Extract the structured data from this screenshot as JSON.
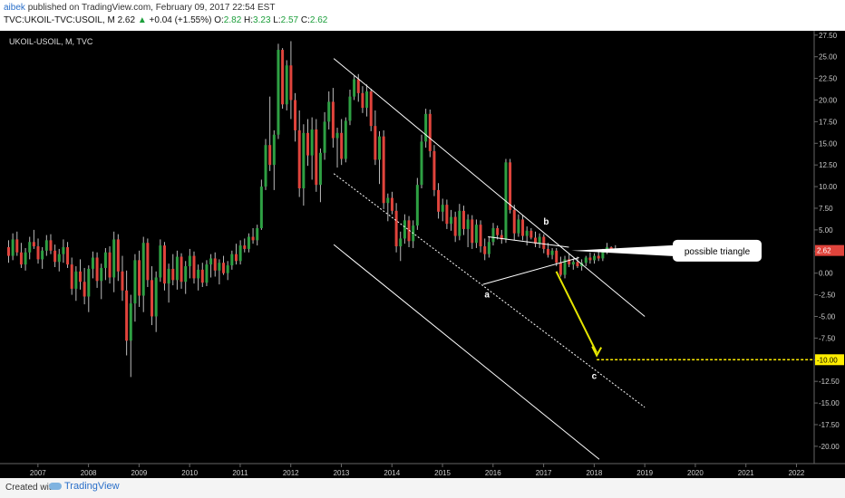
{
  "header": {
    "author": "aibek",
    "published": "published on TradingView.com, February 09, 2017 22:54 EST",
    "symbol": "TVC:UKOIL-TVC:USOIL, M",
    "last": "2.62",
    "change": "+0.04 (+1.55%)",
    "o_label": "O:",
    "o": "2.82",
    "h_label": "H:",
    "h": "3.23",
    "l_label": "L:",
    "l": "2.57",
    "c_label": "C:",
    "c": "2.62"
  },
  "footer": {
    "created_with": "Created with",
    "brand": "TradingView"
  },
  "chart_data": {
    "type": "candlestick",
    "title": "UKOIL-USOIL, M, TVC",
    "ylim": [
      -22,
      28
    ],
    "y_ticks": [
      27.5,
      25.0,
      22.5,
      20.0,
      17.5,
      15.0,
      12.5,
      10.0,
      7.5,
      5.0,
      2.5,
      0.0,
      -2.5,
      -5.0,
      -7.5,
      -10.0,
      -12.5,
      -15.0,
      -17.5,
      -20.0
    ],
    "y_tick_labels": [
      "27.50",
      "25.00",
      "22.50",
      "20.00",
      "17.50",
      "15.00",
      "12.50",
      "10.00",
      "7.50",
      "5.00",
      "2.50",
      "0.00",
      "-2.50",
      "-5.00",
      "-7.50",
      "-10.00",
      "-12.50",
      "-15.00",
      "-17.50",
      "-20.00"
    ],
    "x_ticks": [
      "2007",
      "2008",
      "2009",
      "2010",
      "2011",
      "2012",
      "2013",
      "2014",
      "2015",
      "2016",
      "2017",
      "2018",
      "2019",
      "2020",
      "2021",
      "2022"
    ],
    "x_start_year": 2006.25,
    "x_end_year": 2022.35,
    "last_price": 2.62,
    "last_price_label": "2.62",
    "target_price": -10.0,
    "target_label": "-10.00",
    "colors": {
      "up": "#2ea043",
      "down": "#e0443c",
      "wick": "#bbbbbb",
      "target": "#ffee00",
      "label_red": "#e0443c"
    },
    "candles_ohlc": [
      [
        3.0,
        3.8,
        1.2,
        2.0
      ],
      [
        2.0,
        4.6,
        1.5,
        3.9
      ],
      [
        3.9,
        4.8,
        2.0,
        2.4
      ],
      [
        2.4,
        3.5,
        0.6,
        1.0
      ],
      [
        1.0,
        2.9,
        0.3,
        2.4
      ],
      [
        2.4,
        4.2,
        1.6,
        3.6
      ],
      [
        3.6,
        5.0,
        2.8,
        3.1
      ],
      [
        3.1,
        4.0,
        1.1,
        1.6
      ],
      [
        1.6,
        3.0,
        0.5,
        2.6
      ],
      [
        2.6,
        4.4,
        2.0,
        3.8
      ],
      [
        3.8,
        4.5,
        2.2,
        2.6
      ],
      [
        2.6,
        3.3,
        0.7,
        1.3
      ],
      [
        1.3,
        2.8,
        0.2,
        2.2
      ],
      [
        2.2,
        3.9,
        1.2,
        3.0
      ],
      [
        3.0,
        3.6,
        0.6,
        1.0
      ],
      [
        1.0,
        1.8,
        -2.5,
        -1.8
      ],
      [
        -1.8,
        0.8,
        -3.2,
        0.2
      ],
      [
        0.2,
        1.6,
        -1.9,
        -1.0
      ],
      [
        -1.0,
        0.6,
        -3.6,
        -2.7
      ],
      [
        -2.7,
        0.9,
        -4.5,
        0.5
      ],
      [
        0.5,
        2.5,
        -0.6,
        1.8
      ],
      [
        1.8,
        2.4,
        -1.7,
        -0.9
      ],
      [
        -0.9,
        1.1,
        -3.0,
        0.6
      ],
      [
        0.6,
        2.9,
        -0.8,
        2.4
      ],
      [
        2.4,
        3.1,
        -1.2,
        -0.5
      ],
      [
        -0.5,
        4.8,
        -2.2,
        3.9
      ],
      [
        3.9,
        4.5,
        -0.9,
        0.2
      ],
      [
        0.2,
        2.0,
        -3.2,
        -2.0
      ],
      [
        -2.0,
        0.3,
        -9.5,
        -7.8
      ],
      [
        -7.8,
        -2.5,
        -12.0,
        -3.5
      ],
      [
        -3.5,
        2.2,
        -5.6,
        1.5
      ],
      [
        1.5,
        2.6,
        -3.9,
        -2.6
      ],
      [
        -2.6,
        4.2,
        -4.5,
        3.5
      ],
      [
        3.5,
        4.0,
        -1.6,
        -0.8
      ],
      [
        -0.8,
        0.8,
        -6.0,
        -5.0
      ],
      [
        -5.0,
        0.2,
        -6.8,
        -0.5
      ],
      [
        -0.5,
        3.9,
        -1.0,
        3.2
      ],
      [
        3.2,
        3.6,
        -2.0,
        -1.2
      ],
      [
        -1.2,
        1.1,
        -3.4,
        0.5
      ],
      [
        0.5,
        2.2,
        -1.4,
        -0.8
      ],
      [
        -0.8,
        2.6,
        -1.9,
        1.9
      ],
      [
        1.9,
        2.3,
        -1.8,
        -1.0
      ],
      [
        -1.0,
        1.4,
        -2.4,
        0.8
      ],
      [
        0.8,
        2.8,
        -0.6,
        2.0
      ],
      [
        2.0,
        2.5,
        -1.2,
        -0.6
      ],
      [
        -0.6,
        1.0,
        -2.0,
        0.4
      ],
      [
        0.4,
        1.2,
        -1.6,
        -1.1
      ],
      [
        -1.1,
        1.5,
        -1.5,
        1.0
      ],
      [
        1.0,
        2.2,
        -0.5,
        1.7
      ],
      [
        1.7,
        2.4,
        -0.4,
        0.3
      ],
      [
        0.3,
        1.6,
        -1.3,
        1.2
      ],
      [
        1.2,
        2.0,
        -0.2,
        0.0
      ],
      [
        0.0,
        1.4,
        -0.8,
        0.9
      ],
      [
        0.9,
        2.6,
        0.4,
        2.2
      ],
      [
        2.2,
        3.4,
        1.0,
        1.4
      ],
      [
        1.4,
        3.8,
        1.0,
        3.2
      ],
      [
        3.2,
        4.0,
        2.4,
        2.8
      ],
      [
        2.8,
        4.6,
        2.4,
        4.2
      ],
      [
        4.2,
        5.2,
        3.4,
        3.8
      ],
      [
        3.8,
        5.6,
        3.2,
        5.2
      ],
      [
        5.2,
        10.8,
        5.0,
        10.0
      ],
      [
        10.0,
        15.5,
        9.6,
        14.8
      ],
      [
        14.8,
        20.4,
        11.8,
        12.5
      ],
      [
        12.5,
        16.5,
        9.6,
        16.0
      ],
      [
        16.0,
        26.5,
        15.5,
        25.8
      ],
      [
        25.8,
        26.0,
        19.0,
        19.5
      ],
      [
        19.5,
        24.6,
        18.8,
        24.0
      ],
      [
        24.0,
        26.8,
        17.8,
        20.0
      ],
      [
        20.0,
        20.8,
        15.2,
        16.5
      ],
      [
        16.5,
        18.8,
        8.8,
        9.8
      ],
      [
        9.8,
        17.2,
        7.8,
        16.2
      ],
      [
        16.2,
        17.8,
        12.4,
        13.6
      ],
      [
        13.6,
        18.0,
        10.8,
        16.6
      ],
      [
        16.6,
        17.8,
        9.4,
        10.2
      ],
      [
        10.2,
        14.4,
        8.2,
        13.9
      ],
      [
        13.9,
        18.6,
        13.1,
        17.5
      ],
      [
        17.5,
        21.0,
        16.6,
        19.8
      ],
      [
        19.8,
        21.4,
        14.5,
        15.6
      ],
      [
        15.6,
        16.8,
        12.2,
        16.2
      ],
      [
        16.2,
        17.8,
        12.5,
        13.2
      ],
      [
        13.2,
        18.0,
        12.8,
        17.6
      ],
      [
        17.6,
        21.2,
        17.1,
        20.4
      ],
      [
        20.4,
        22.8,
        20.0,
        22.4
      ],
      [
        22.4,
        23.0,
        19.8,
        20.8
      ],
      [
        20.8,
        21.6,
        18.5,
        19.1
      ],
      [
        19.1,
        21.8,
        18.1,
        21.0
      ],
      [
        21.0,
        21.3,
        16.4,
        17.0
      ],
      [
        17.0,
        18.8,
        12.5,
        13.1
      ],
      [
        13.1,
        16.4,
        10.3,
        15.8
      ],
      [
        15.8,
        16.5,
        7.4,
        8.1
      ],
      [
        8.1,
        9.2,
        6.0,
        8.7
      ],
      [
        8.7,
        9.4,
        6.8,
        7.2
      ],
      [
        7.2,
        8.1,
        2.4,
        3.1
      ],
      [
        3.1,
        4.8,
        1.4,
        4.0
      ],
      [
        4.0,
        6.8,
        3.4,
        6.1
      ],
      [
        6.1,
        6.6,
        3.0,
        3.7
      ],
      [
        3.7,
        6.1,
        2.9,
        5.5
      ],
      [
        5.5,
        11.0,
        5.0,
        10.2
      ],
      [
        10.2,
        16.0,
        9.8,
        15.2
      ],
      [
        15.2,
        19.0,
        14.5,
        18.4
      ],
      [
        18.4,
        18.9,
        13.4,
        14.1
      ],
      [
        14.1,
        14.8,
        8.9,
        9.6
      ],
      [
        9.6,
        10.4,
        6.3,
        7.1
      ],
      [
        7.1,
        8.6,
        6.0,
        7.9
      ],
      [
        7.9,
        8.5,
        5.1,
        5.7
      ],
      [
        5.7,
        7.3,
        4.9,
        6.5
      ],
      [
        6.5,
        7.1,
        3.6,
        4.3
      ],
      [
        4.3,
        8.0,
        3.8,
        7.2
      ],
      [
        7.2,
        7.8,
        4.4,
        5.1
      ],
      [
        5.1,
        6.8,
        3.0,
        6.2
      ],
      [
        6.2,
        6.7,
        2.8,
        3.5
      ],
      [
        3.5,
        6.2,
        2.9,
        5.6
      ],
      [
        5.6,
        6.1,
        2.4,
        3.1
      ],
      [
        3.1,
        4.0,
        1.5,
        2.2
      ],
      [
        2.2,
        4.2,
        1.8,
        3.6
      ],
      [
        3.6,
        5.8,
        3.2,
        5.2
      ],
      [
        5.2,
        5.5,
        3.9,
        4.4
      ],
      [
        4.4,
        5.0,
        3.4,
        3.9
      ],
      [
        3.9,
        13.2,
        3.5,
        12.8
      ],
      [
        12.8,
        13.2,
        6.9,
        7.3
      ],
      [
        7.3,
        7.9,
        3.8,
        4.6
      ],
      [
        4.6,
        6.8,
        4.2,
        6.2
      ],
      [
        6.2,
        6.7,
        3.8,
        4.3
      ],
      [
        4.3,
        5.4,
        3.2,
        4.9
      ],
      [
        4.9,
        5.2,
        3.9,
        4.1
      ],
      [
        4.1,
        4.8,
        3.0,
        3.4
      ],
      [
        3.4,
        4.6,
        2.9,
        4.2
      ],
      [
        4.2,
        4.5,
        2.3,
        2.8
      ],
      [
        2.8,
        3.5,
        1.8,
        2.1
      ],
      [
        2.1,
        2.9,
        1.6,
        2.6
      ],
      [
        2.6,
        2.9,
        0.8,
        1.2
      ],
      [
        1.2,
        1.9,
        -0.4,
        -0.2
      ],
      [
        -0.2,
        2.0,
        -0.6,
        1.6
      ],
      [
        1.6,
        2.3,
        0.7,
        1.0
      ],
      [
        1.0,
        1.7,
        0.4,
        1.3
      ],
      [
        1.3,
        1.9,
        0.6,
        0.8
      ],
      [
        0.8,
        1.6,
        0.3,
        1.2
      ],
      [
        1.2,
        2.0,
        0.8,
        1.8
      ],
      [
        1.8,
        2.4,
        1.1,
        1.5
      ],
      [
        1.5,
        2.3,
        1.1,
        2.0
      ],
      [
        2.0,
        2.5,
        1.4,
        1.7
      ],
      [
        1.7,
        2.8,
        1.4,
        2.5
      ],
      [
        2.5,
        3.5,
        2.2,
        3.0
      ],
      [
        3.0,
        3.1,
        2.4,
        2.6
      ],
      [
        2.82,
        3.23,
        2.57,
        2.62
      ]
    ],
    "annotations": {
      "a": "a",
      "b": "b",
      "c": "c",
      "callout": "possible triangle"
    }
  }
}
